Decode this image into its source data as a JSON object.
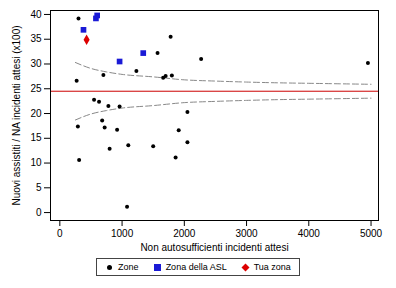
{
  "chart_data": {
    "type": "scatter",
    "xlabel": "Non autosufficienti incidenti attesi",
    "ylabel": "Nuovi assistiti / NA incidenti attesi (x100)",
    "xlim": [
      -150,
      5120
    ],
    "ylim": [
      -1.6,
      40.8
    ],
    "xticks": [
      0,
      1000,
      2000,
      3000,
      4000,
      5000
    ],
    "yticks": [
      0,
      5,
      10,
      15,
      20,
      25,
      30,
      35,
      40
    ],
    "grid": false,
    "legend": "bottom",
    "reference_line": {
      "value": 24.5,
      "color": "#cc0000"
    },
    "funnel": {
      "color": "#888888",
      "line_style": "dashed",
      "x": [
        250,
        500,
        750,
        1000,
        1500,
        2000,
        2500,
        3000,
        3500,
        4000,
        4500,
        5000
      ],
      "upper": [
        30.3,
        29.1,
        28.4,
        27.9,
        27.4,
        26.8,
        26.55,
        26.35,
        26.2,
        26.1,
        26.0,
        25.9
      ],
      "lower": [
        18.7,
        19.9,
        20.6,
        21.1,
        21.6,
        22.2,
        22.45,
        22.65,
        22.8,
        22.9,
        23.0,
        23.1
      ]
    },
    "series": [
      {
        "name": "Zone",
        "color": "#000000",
        "marker": "circle",
        "x": [
          300,
          270,
          290,
          310,
          550,
          630,
          700,
          680,
          720,
          780,
          800,
          920,
          960,
          1100,
          1080,
          1230,
          1570,
          1500,
          1660,
          1700,
          1800,
          1780,
          1860,
          1910,
          2050,
          2050,
          2270,
          4950
        ],
        "values": [
          39.2,
          26.6,
          17.4,
          10.6,
          22.8,
          22.4,
          27.8,
          18.6,
          17.2,
          21.5,
          12.9,
          16.7,
          21.4,
          13.6,
          1.2,
          28.6,
          32.2,
          13.4,
          27.2,
          27.6,
          27.7,
          35.5,
          11.1,
          16.6,
          20.3,
          14.2,
          31.0,
          30.2
        ]
      },
      {
        "name": "Zona della ASL",
        "color": "#1a1ad6",
        "marker": "square",
        "x": [
          380,
          580,
          600,
          960,
          1340
        ],
        "values": [
          36.9,
          39.2,
          39.8,
          30.5,
          32.2
        ]
      },
      {
        "name": "Tua zona",
        "color": "#dd0000",
        "marker": "diamond",
        "x": [
          430
        ],
        "values": [
          34.9
        ]
      }
    ]
  }
}
